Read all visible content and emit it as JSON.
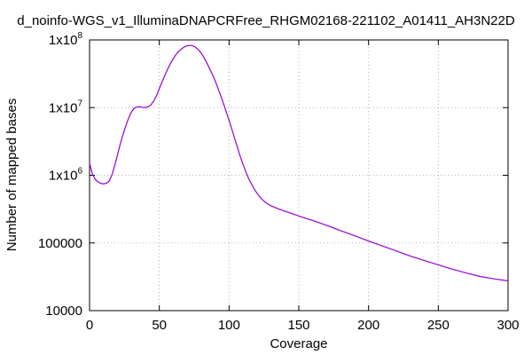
{
  "chart_data": {
    "type": "line",
    "title": "d_noinfo-WGS_v1_IlluminaDNAPCRFree_RHGM02168-221102_A01411_AH3N22D",
    "xlabel": "Coverage",
    "ylabel": "Number of mapped bases",
    "xlim": [
      0,
      300
    ],
    "ylim": [
      10000,
      100000000
    ],
    "yscale": "log",
    "grid": true,
    "x_ticks": [
      {
        "value": 0,
        "label": "0"
      },
      {
        "value": 50,
        "label": "50"
      },
      {
        "value": 100,
        "label": "100"
      },
      {
        "value": 150,
        "label": "150"
      },
      {
        "value": 200,
        "label": "200"
      },
      {
        "value": 250,
        "label": "250"
      },
      {
        "value": 300,
        "label": "300"
      }
    ],
    "y_ticks": [
      {
        "value": 10000,
        "label": "10000",
        "base": "",
        "exp": ""
      },
      {
        "value": 100000,
        "label": "100000",
        "base": "",
        "exp": ""
      },
      {
        "value": 1000000,
        "label": "",
        "base": "1x10",
        "exp": "6"
      },
      {
        "value": 10000000,
        "label": "",
        "base": "1x10",
        "exp": "7"
      },
      {
        "value": 100000000,
        "label": "",
        "base": "1x10",
        "exp": "8"
      }
    ],
    "line_color": "#9400d3",
    "series": [
      {
        "x": [
          0,
          2,
          4,
          6,
          8,
          10,
          12,
          14,
          16,
          18,
          20,
          22,
          24,
          26,
          28,
          30,
          32,
          34,
          36,
          38,
          40,
          42,
          44,
          46,
          48,
          50,
          52,
          54,
          56,
          58,
          60,
          62,
          64,
          66,
          68,
          70,
          72,
          74,
          76,
          78,
          80,
          82,
          84,
          86,
          88,
          90,
          92,
          94,
          96,
          98,
          100,
          102,
          104,
          106,
          108,
          110,
          112,
          114,
          116,
          118,
          120,
          122,
          124,
          126,
          128,
          130,
          135,
          140,
          145,
          150,
          160,
          170,
          180,
          190,
          200,
          210,
          220,
          230,
          240,
          250,
          260,
          270,
          280,
          290,
          300
        ],
        "y": [
          1500000,
          1050000,
          880000,
          800000,
          760000,
          745000,
          760000,
          820000,
          1000000,
          1380000,
          2000000,
          2900000,
          4000000,
          5400000,
          7000000,
          8600000,
          9800000,
          10200000,
          10300000,
          10100000,
          10000000,
          10300000,
          11000000,
          12500000,
          15000000,
          19000000,
          24000000,
          30000000,
          37000000,
          45000000,
          53000000,
          61000000,
          68000000,
          74000000,
          79000000,
          82000000,
          83000000,
          82000000,
          78000000,
          72000000,
          64000000,
          55000000,
          46000000,
          38000000,
          31000000,
          25000000,
          19500000,
          15000000,
          11500000,
          8600000,
          6500000,
          4800000,
          3500000,
          2600000,
          1900000,
          1450000,
          1130000,
          900000,
          750000,
          630000,
          545000,
          480000,
          435000,
          400000,
          375000,
          355000,
          320000,
          295000,
          272000,
          250000,
          215000,
          182000,
          152000,
          128000,
          107000,
          90000,
          76000,
          64000,
          55000,
          47500,
          41000,
          36000,
          32000,
          29500,
          27500
        ]
      }
    ]
  }
}
